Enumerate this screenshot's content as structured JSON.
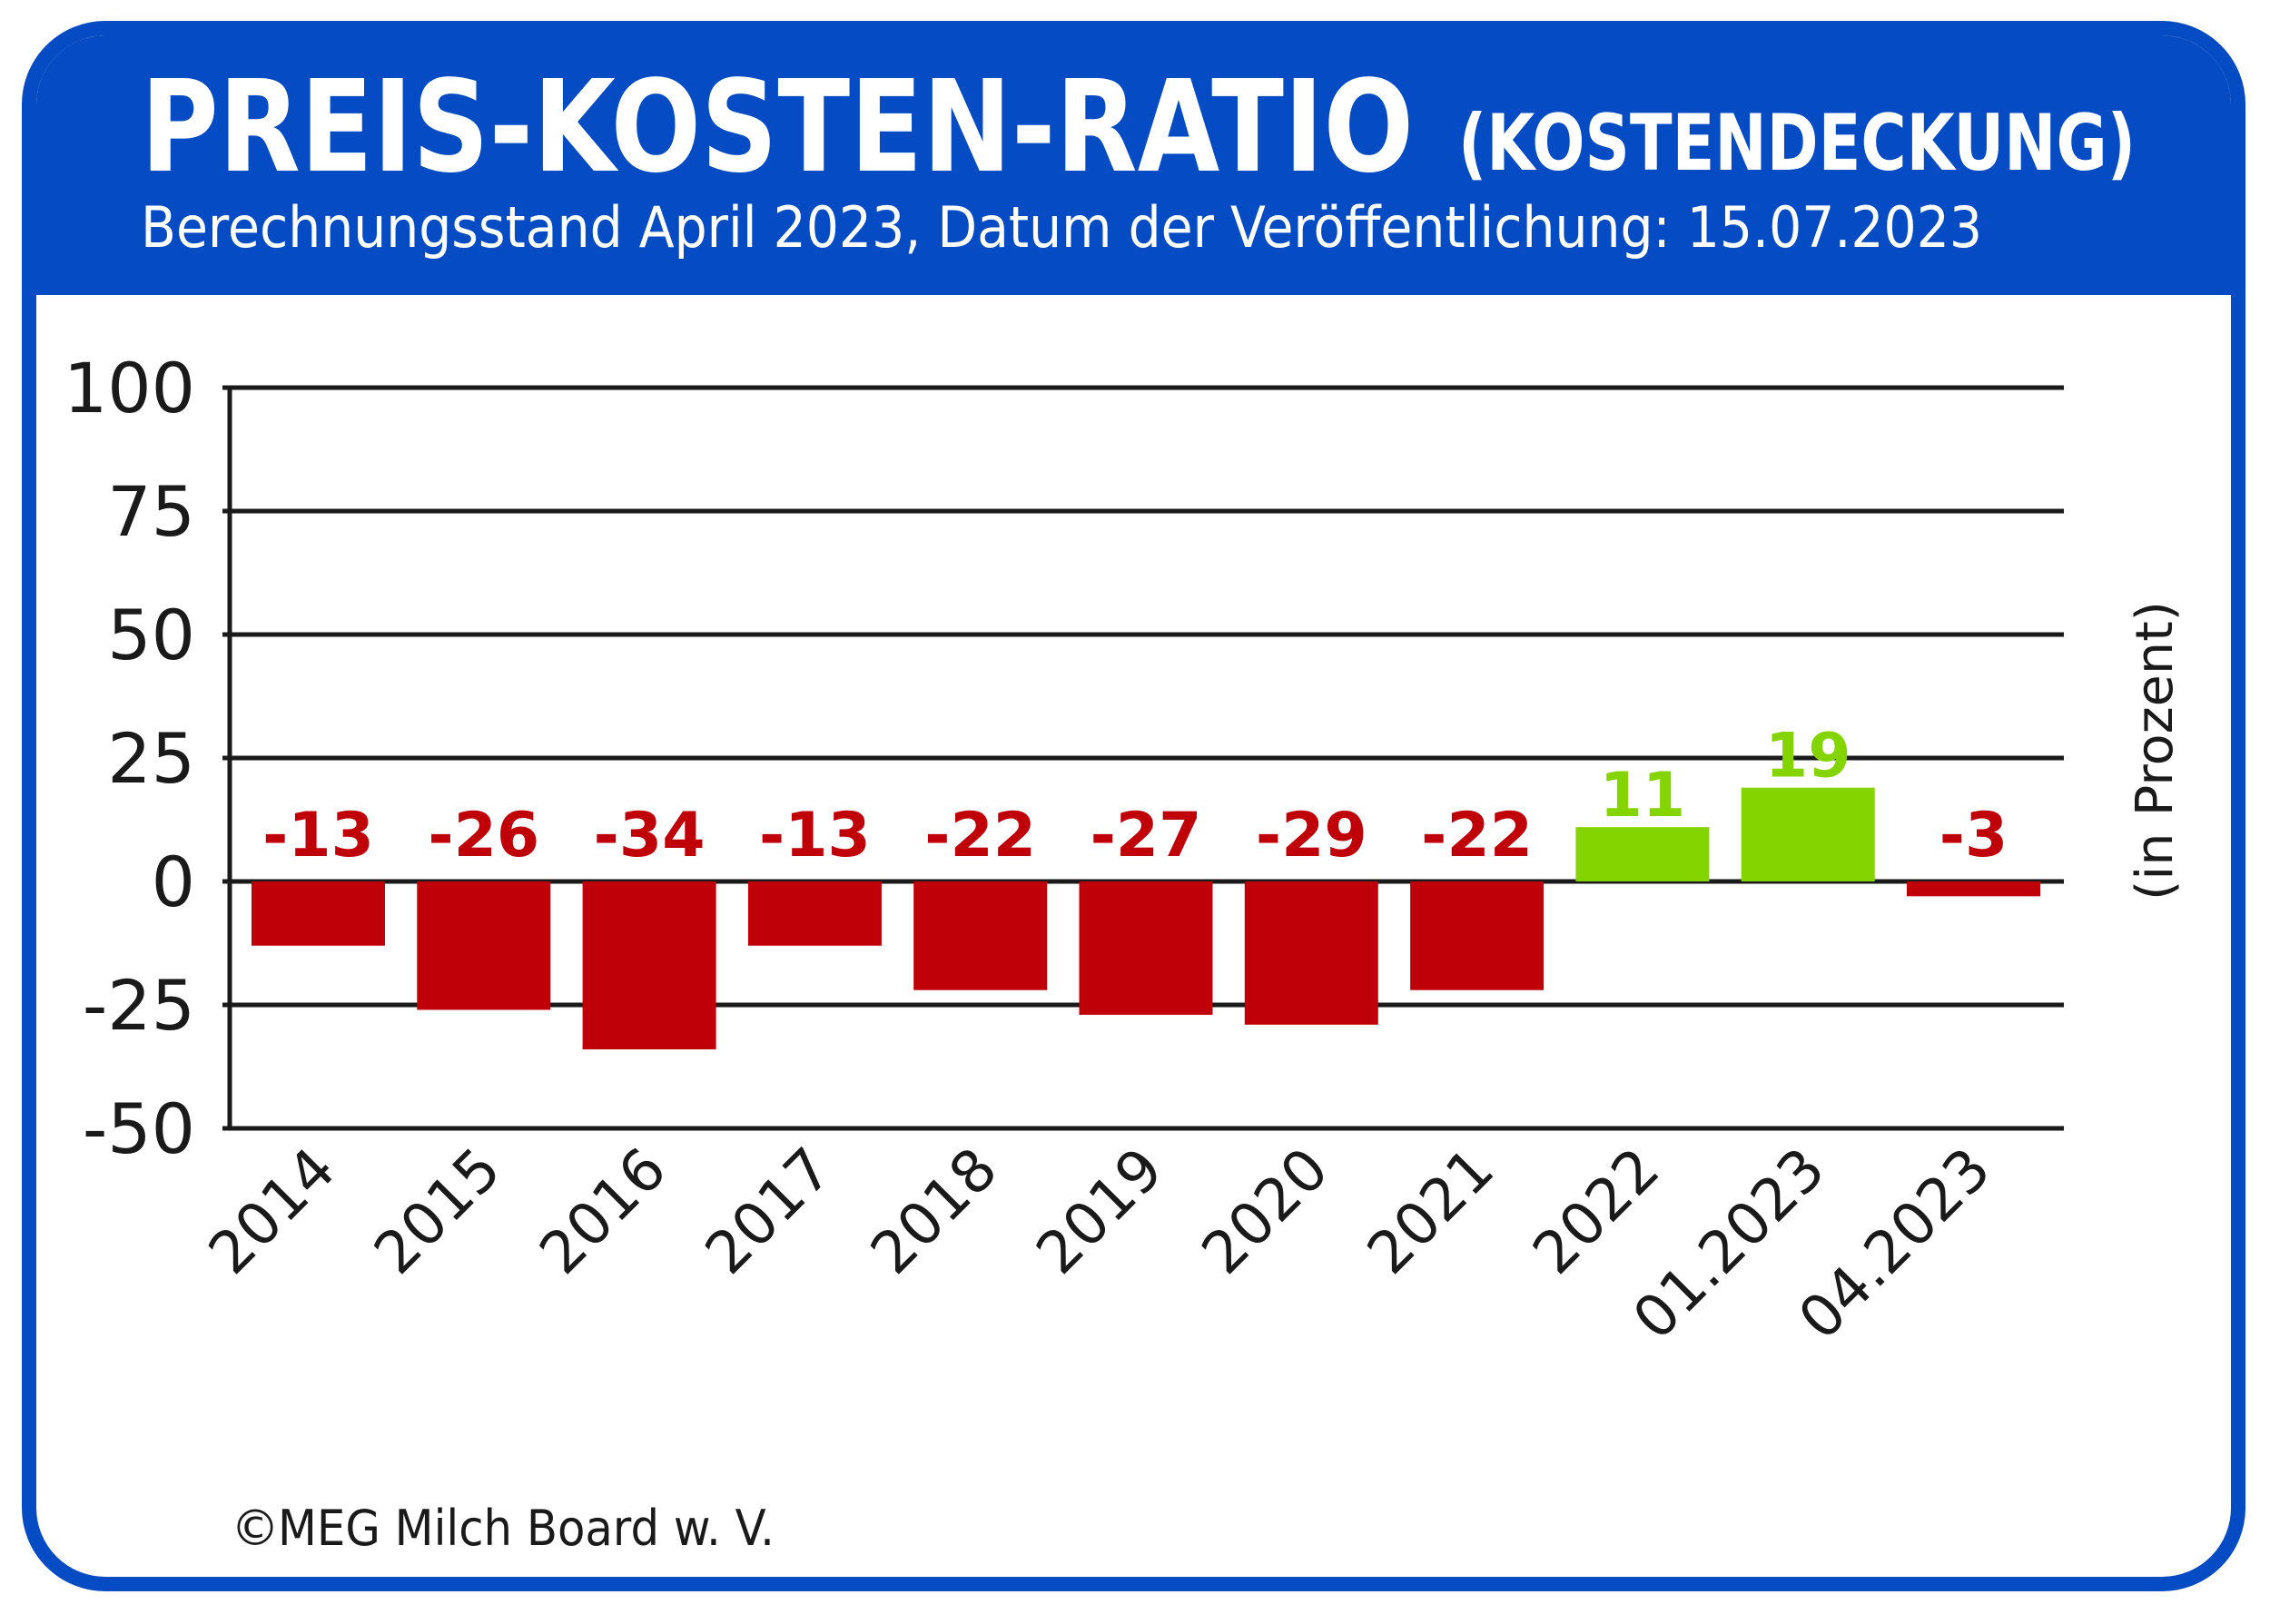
{
  "header": {
    "title": "PREIS-KOSTEN-RATIO",
    "title_suffix": "(KOSTENDECKUNG)",
    "subtitle": "Berechnungsstand April 2023, Datum der Veröffentlichung: 15.07.2023"
  },
  "footer": {
    "copyright_symbol": "©",
    "copyright": "MEG Milch Board w. V."
  },
  "colors": {
    "brand_blue": "#054CC4",
    "negative": "#C00008",
    "positive": "#84D400",
    "grid": "#1a1a1a"
  },
  "chart_data": {
    "type": "bar",
    "title": "PREIS-KOSTEN-RATIO (KOSTENDECKUNG)",
    "subtitle": "Berechnungsstand April 2023, Datum der Veröffentlichung: 15.07.2023",
    "xlabel": "",
    "ylabel": "(in Prozent)",
    "ylabel_position": "right",
    "ylim": [
      -50,
      100
    ],
    "yticks": [
      100,
      75,
      50,
      25,
      0,
      -25,
      -50
    ],
    "grid": true,
    "legend": "none",
    "categories": [
      "2014",
      "2015",
      "2016",
      "2017",
      "2018",
      "2019",
      "2020",
      "2021",
      "2022",
      "01.2023",
      "04.2023"
    ],
    "values": [
      -13,
      -26,
      -34,
      -13,
      -22,
      -27,
      -29,
      -22,
      11,
      19,
      -3
    ],
    "data_labels": [
      "-13",
      "-26",
      "-34",
      "-13",
      "-22",
      "-27",
      "-29",
      "-22",
      "11",
      "19",
      "-3"
    ]
  }
}
